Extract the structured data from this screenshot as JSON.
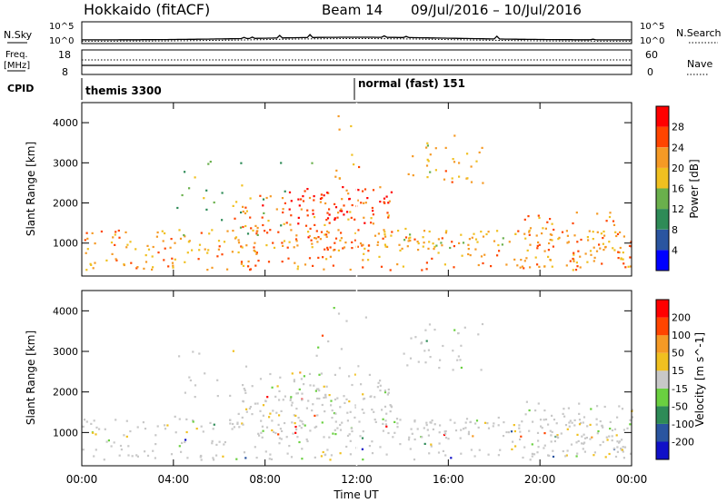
{
  "header": {
    "station": "Hokkaido (fitACF)",
    "beam": "Beam 14",
    "date_range": "09/Jul/2016 – 10/Jul/2016"
  },
  "top_panels": {
    "nsky_label": "N.Sky",
    "nsky_ticks": [
      "10^5",
      "10^0"
    ],
    "nsky_right_ticks": [
      "10^5",
      "10^0"
    ],
    "nsearch_label": "N.Search",
    "freq_label": "Freq.",
    "freq_unit": "[MHz]",
    "freq_ticks": [
      "18",
      "8"
    ],
    "nave_label": "Nave",
    "nave_ticks": [
      "60",
      "0"
    ],
    "cpid_label": "CPID",
    "cpid_entries": [
      {
        "text": "themis 3300",
        "start_hour": 0
      },
      {
        "text": "normal (fast) 151",
        "start_hour": 12
      }
    ]
  },
  "chart_data": [
    {
      "type": "heatmap",
      "ylabel": "Slant Range [km]",
      "x_range_hours": [
        0,
        24
      ],
      "ylim": [
        180,
        4500
      ],
      "yticks": [
        "1000",
        "2000",
        "3000",
        "4000"
      ],
      "colorbar": {
        "label": "Power [dB]",
        "ticks": [
          "4",
          "8",
          "12",
          "16",
          "20",
          "24",
          "28"
        ],
        "colors": [
          "#0000ff",
          "#2a55a0",
          "#2e8b57",
          "#6ab04c",
          "#f0c020",
          "#f59a25",
          "#ff4500",
          "#ff0000"
        ]
      }
    },
    {
      "type": "heatmap",
      "ylabel": "Slant Range [km]",
      "x_range_hours": [
        0,
        24
      ],
      "ylim": [
        180,
        4500
      ],
      "yticks": [
        "1000",
        "2000",
        "3000",
        "4000"
      ],
      "colorbar": {
        "label": "Velocity [m s^-1]",
        "ticks": [
          "200",
          "100",
          "50",
          "15",
          "-15",
          "-50",
          "-100",
          "-200"
        ],
        "colors": [
          "#1010c8",
          "#2a55a0",
          "#2e8b57",
          "#6ad040",
          "#c8c8c8",
          "#f0c020",
          "#f59a25",
          "#ff4500",
          "#ff0000"
        ]
      }
    }
  ],
  "xaxis": {
    "label": "Time UT",
    "ticks": [
      "00:00",
      "04:00",
      "08:00",
      "12:00",
      "16:00",
      "20:00",
      "00:00"
    ]
  }
}
